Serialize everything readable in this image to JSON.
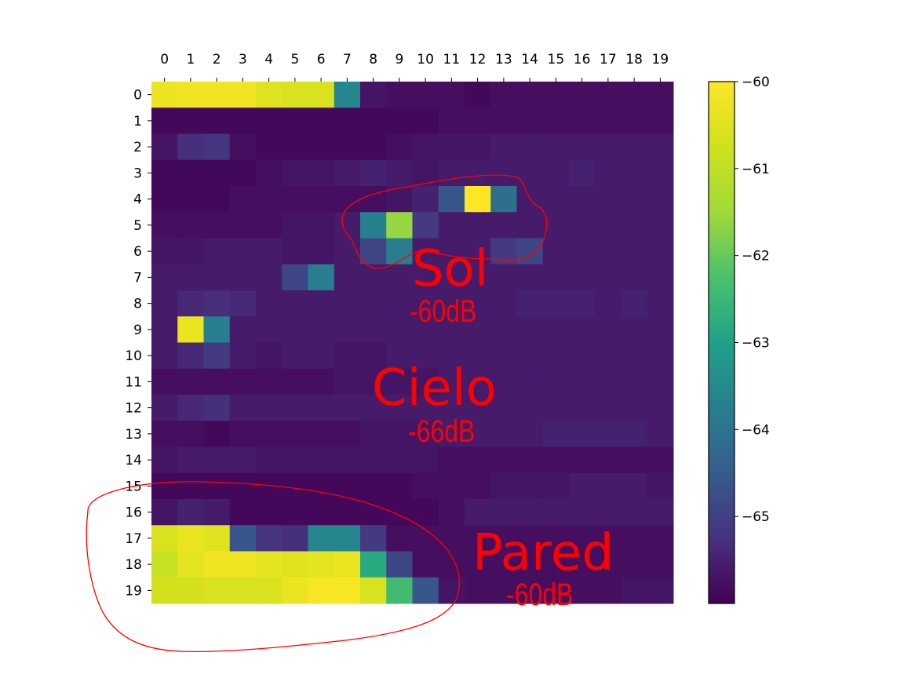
{
  "chart_data": {
    "type": "heatmap",
    "title": "",
    "xlabel": "",
    "ylabel": "",
    "x_ticks": [
      "0",
      "1",
      "2",
      "3",
      "4",
      "5",
      "6",
      "7",
      "8",
      "9",
      "10",
      "11",
      "12",
      "13",
      "14",
      "15",
      "16",
      "17",
      "18",
      "19"
    ],
    "y_ticks": [
      "0",
      "1",
      "2",
      "3",
      "4",
      "5",
      "6",
      "7",
      "8",
      "9",
      "10",
      "11",
      "12",
      "13",
      "14",
      "15",
      "16",
      "17",
      "18",
      "19"
    ],
    "x_axis_position": "top",
    "colormap": "viridis",
    "colorbar": {
      "range": [
        -66,
        -60
      ],
      "ticks": [
        -60,
        -61,
        -62,
        -63,
        -64,
        -65
      ],
      "tick_labels": [
        "−60",
        "−61",
        "−62",
        "−63",
        "−64",
        "−65"
      ],
      "placement": "right"
    },
    "values": [
      [
        -60.3,
        -60.2,
        -60.2,
        -60.2,
        -60.5,
        -60.6,
        -60.6,
        -63.6,
        -65.7,
        -65.8,
        -65.8,
        -65.8,
        -65.9,
        -65.8,
        -65.8,
        -65.8,
        -65.8,
        -65.8,
        -65.8,
        -65.8
      ],
      [
        -65.9,
        -65.9,
        -65.9,
        -65.9,
        -65.9,
        -65.9,
        -65.9,
        -65.9,
        -65.9,
        -65.9,
        -65.9,
        -65.8,
        -65.8,
        -65.8,
        -65.8,
        -65.8,
        -65.8,
        -65.8,
        -65.8,
        -65.8
      ],
      [
        -65.7,
        -65.3,
        -65.2,
        -65.8,
        -65.9,
        -65.9,
        -65.9,
        -65.9,
        -65.9,
        -65.8,
        -65.7,
        -65.7,
        -65.7,
        -65.6,
        -65.6,
        -65.6,
        -65.6,
        -65.6,
        -65.6,
        -65.6
      ],
      [
        -65.9,
        -65.9,
        -65.9,
        -65.9,
        -65.8,
        -65.7,
        -65.7,
        -65.6,
        -65.5,
        -65.6,
        -65.7,
        -65.6,
        -65.6,
        -65.6,
        -65.6,
        -65.6,
        -65.5,
        -65.6,
        -65.6,
        -65.6
      ],
      [
        -65.9,
        -65.9,
        -65.9,
        -65.8,
        -65.8,
        -65.8,
        -65.8,
        -65.8,
        -65.8,
        -65.7,
        -65.5,
        -64.6,
        -60.0,
        -64.1,
        -65.6,
        -65.6,
        -65.6,
        -65.6,
        -65.6,
        -65.6
      ],
      [
        -65.8,
        -65.8,
        -65.8,
        -65.8,
        -65.8,
        -65.7,
        -65.7,
        -65.6,
        -63.7,
        -61.6,
        -65.1,
        -65.6,
        -65.6,
        -65.6,
        -65.6,
        -65.6,
        -65.6,
        -65.6,
        -65.6,
        -65.6
      ],
      [
        -65.7,
        -65.7,
        -65.6,
        -65.6,
        -65.6,
        -65.7,
        -65.7,
        -65.6,
        -64.9,
        -63.8,
        -65.6,
        -65.6,
        -65.6,
        -65.1,
        -64.9,
        -65.6,
        -65.6,
        -65.6,
        -65.6,
        -65.6
      ],
      [
        -65.6,
        -65.6,
        -65.6,
        -65.6,
        -65.6,
        -64.9,
        -63.8,
        -65.6,
        -65.6,
        -65.6,
        -65.6,
        -65.6,
        -65.6,
        -65.6,
        -65.6,
        -65.6,
        -65.6,
        -65.6,
        -65.6,
        -65.6
      ],
      [
        -65.6,
        -65.4,
        -65.3,
        -65.4,
        -65.6,
        -65.6,
        -65.6,
        -65.6,
        -65.6,
        -65.6,
        -65.6,
        -65.6,
        -65.6,
        -65.6,
        -65.5,
        -65.5,
        -65.5,
        -65.6,
        -65.5,
        -65.6
      ],
      [
        -65.6,
        -60.3,
        -63.8,
        -65.6,
        -65.6,
        -65.6,
        -65.6,
        -65.6,
        -65.6,
        -65.6,
        -65.6,
        -65.6,
        -65.6,
        -65.6,
        -65.6,
        -65.6,
        -65.6,
        -65.6,
        -65.6,
        -65.6
      ],
      [
        -65.6,
        -65.4,
        -65.1,
        -65.6,
        -65.7,
        -65.6,
        -65.6,
        -65.7,
        -65.7,
        -65.6,
        -65.6,
        -65.6,
        -65.6,
        -65.6,
        -65.6,
        -65.6,
        -65.6,
        -65.6,
        -65.6,
        -65.6
      ],
      [
        -65.8,
        -65.8,
        -65.8,
        -65.8,
        -65.8,
        -65.8,
        -65.8,
        -65.7,
        -65.7,
        -65.7,
        -65.7,
        -65.6,
        -65.6,
        -65.6,
        -65.6,
        -65.6,
        -65.6,
        -65.6,
        -65.6,
        -65.6
      ],
      [
        -65.6,
        -65.4,
        -65.3,
        -65.6,
        -65.6,
        -65.6,
        -65.6,
        -65.6,
        -65.6,
        -65.6,
        -65.6,
        -65.6,
        -65.6,
        -65.6,
        -65.6,
        -65.6,
        -65.6,
        -65.6,
        -65.6,
        -65.6
      ],
      [
        -65.8,
        -65.8,
        -65.9,
        -65.8,
        -65.8,
        -65.8,
        -65.8,
        -65.8,
        -65.7,
        -65.7,
        -65.7,
        -65.6,
        -65.6,
        -65.6,
        -65.6,
        -65.5,
        -65.5,
        -65.5,
        -65.5,
        -65.6
      ],
      [
        -65.7,
        -65.6,
        -65.6,
        -65.6,
        -65.7,
        -65.7,
        -65.7,
        -65.7,
        -65.7,
        -65.7,
        -65.7,
        -65.8,
        -65.8,
        -65.8,
        -65.8,
        -65.8,
        -65.8,
        -65.8,
        -65.8,
        -65.8
      ],
      [
        -65.9,
        -65.9,
        -65.9,
        -65.9,
        -65.9,
        -65.9,
        -65.9,
        -65.9,
        -65.9,
        -65.9,
        -65.8,
        -65.8,
        -65.8,
        -65.7,
        -65.7,
        -65.7,
        -65.6,
        -65.6,
        -65.6,
        -65.7
      ],
      [
        -65.7,
        -65.5,
        -65.6,
        -65.9,
        -65.9,
        -65.9,
        -65.9,
        -65.9,
        -65.9,
        -65.9,
        -65.9,
        -65.8,
        -65.6,
        -65.6,
        -65.6,
        -65.6,
        -65.6,
        -65.6,
        -65.6,
        -65.6
      ],
      [
        -60.6,
        -60.3,
        -60.5,
        -64.6,
        -65.2,
        -65.3,
        -63.6,
        -63.6,
        -65.1,
        -65.8,
        -65.8,
        -65.8,
        -65.8,
        -65.8,
        -65.8,
        -65.8,
        -65.8,
        -65.8,
        -65.8,
        -65.8
      ],
      [
        -60.9,
        -60.4,
        -60.2,
        -60.2,
        -60.4,
        -60.5,
        -60.4,
        -60.3,
        -62.8,
        -64.9,
        -65.8,
        -65.8,
        -65.8,
        -65.8,
        -65.8,
        -65.8,
        -65.8,
        -65.8,
        -65.8,
        -65.8
      ],
      [
        -60.7,
        -60.7,
        -60.6,
        -60.6,
        -60.6,
        -60.3,
        -60.1,
        -60.1,
        -60.6,
        -62.4,
        -64.6,
        -65.7,
        -65.8,
        -65.8,
        -65.8,
        -65.8,
        -65.8,
        -65.8,
        -65.7,
        -65.7
      ]
    ],
    "annotations": [
      {
        "label": "Sol",
        "sublabel": "-60dB"
      },
      {
        "label": "Cielo",
        "sublabel": "-66dB"
      },
      {
        "label": "Pared",
        "sublabel": "-60dB"
      }
    ],
    "annotation_color": "#ff0000"
  }
}
